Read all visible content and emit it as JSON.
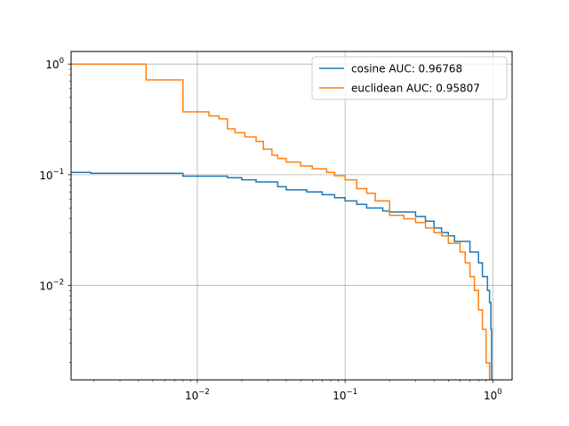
{
  "chart_data": {
    "type": "line",
    "title": "",
    "xlabel": "",
    "ylabel": "",
    "xscale": "log",
    "yscale": "log",
    "xlim": [
      0.0014,
      1.35
    ],
    "ylim": [
      0.0014,
      1.3
    ],
    "grid": true,
    "legend_placement": "top-right",
    "x_ticks": [
      {
        "value": 0.01,
        "base": "10",
        "exp": "−2"
      },
      {
        "value": 0.1,
        "base": "10",
        "exp": "−1"
      },
      {
        "value": 1,
        "base": "10",
        "exp": "0"
      }
    ],
    "y_ticks": [
      {
        "value": 0.01,
        "base": "10",
        "exp": "−2"
      },
      {
        "value": 0.1,
        "base": "10",
        "exp": "−1"
      },
      {
        "value": 1,
        "base": "10",
        "exp": "0"
      }
    ],
    "series": [
      {
        "name": "cosine AUC: 0.96768",
        "color": "#1f77b4",
        "steps": [
          [
            0.0014,
            0.105
          ],
          [
            0.0019,
            0.105
          ],
          [
            0.0019,
            0.103
          ],
          [
            0.008,
            0.103
          ],
          [
            0.008,
            0.097
          ],
          [
            0.016,
            0.097
          ],
          [
            0.016,
            0.094
          ],
          [
            0.02,
            0.094
          ],
          [
            0.02,
            0.09
          ],
          [
            0.025,
            0.09
          ],
          [
            0.025,
            0.086
          ],
          [
            0.035,
            0.086
          ],
          [
            0.035,
            0.078
          ],
          [
            0.04,
            0.078
          ],
          [
            0.04,
            0.073
          ],
          [
            0.055,
            0.073
          ],
          [
            0.055,
            0.07
          ],
          [
            0.07,
            0.07
          ],
          [
            0.07,
            0.066
          ],
          [
            0.085,
            0.066
          ],
          [
            0.085,
            0.062
          ],
          [
            0.1,
            0.062
          ],
          [
            0.1,
            0.058
          ],
          [
            0.12,
            0.058
          ],
          [
            0.12,
            0.054
          ],
          [
            0.14,
            0.054
          ],
          [
            0.14,
            0.05
          ],
          [
            0.18,
            0.05
          ],
          [
            0.18,
            0.047
          ],
          [
            0.2,
            0.047
          ],
          [
            0.2,
            0.046
          ],
          [
            0.3,
            0.046
          ],
          [
            0.3,
            0.042
          ],
          [
            0.35,
            0.042
          ],
          [
            0.35,
            0.038
          ],
          [
            0.4,
            0.038
          ],
          [
            0.4,
            0.033
          ],
          [
            0.45,
            0.033
          ],
          [
            0.45,
            0.03
          ],
          [
            0.5,
            0.03
          ],
          [
            0.5,
            0.028
          ],
          [
            0.55,
            0.028
          ],
          [
            0.55,
            0.025
          ],
          [
            0.7,
            0.025
          ],
          [
            0.7,
            0.02
          ],
          [
            0.8,
            0.02
          ],
          [
            0.8,
            0.016
          ],
          [
            0.85,
            0.016
          ],
          [
            0.85,
            0.012
          ],
          [
            0.92,
            0.012
          ],
          [
            0.92,
            0.009
          ],
          [
            0.95,
            0.009
          ],
          [
            0.95,
            0.007
          ],
          [
            0.97,
            0.007
          ],
          [
            0.97,
            0.004
          ],
          [
            0.98,
            0.004
          ],
          [
            0.98,
            0.0014
          ]
        ]
      },
      {
        "name": "euclidean AUC: 0.95807",
        "color": "#ff7f0e",
        "steps": [
          [
            0.0014,
            1.0
          ],
          [
            0.0045,
            1.0
          ],
          [
            0.0045,
            0.72
          ],
          [
            0.008,
            0.72
          ],
          [
            0.008,
            0.37
          ],
          [
            0.012,
            0.37
          ],
          [
            0.012,
            0.34
          ],
          [
            0.014,
            0.34
          ],
          [
            0.014,
            0.32
          ],
          [
            0.016,
            0.32
          ],
          [
            0.016,
            0.26
          ],
          [
            0.018,
            0.26
          ],
          [
            0.018,
            0.24
          ],
          [
            0.021,
            0.24
          ],
          [
            0.021,
            0.22
          ],
          [
            0.025,
            0.22
          ],
          [
            0.025,
            0.2
          ],
          [
            0.028,
            0.2
          ],
          [
            0.028,
            0.17
          ],
          [
            0.032,
            0.17
          ],
          [
            0.032,
            0.15
          ],
          [
            0.035,
            0.15
          ],
          [
            0.035,
            0.14
          ],
          [
            0.04,
            0.14
          ],
          [
            0.04,
            0.13
          ],
          [
            0.05,
            0.13
          ],
          [
            0.05,
            0.12
          ],
          [
            0.06,
            0.12
          ],
          [
            0.06,
            0.113
          ],
          [
            0.075,
            0.113
          ],
          [
            0.075,
            0.105
          ],
          [
            0.085,
            0.105
          ],
          [
            0.085,
            0.098
          ],
          [
            0.1,
            0.098
          ],
          [
            0.1,
            0.09
          ],
          [
            0.12,
            0.09
          ],
          [
            0.12,
            0.075
          ],
          [
            0.14,
            0.075
          ],
          [
            0.14,
            0.068
          ],
          [
            0.16,
            0.068
          ],
          [
            0.16,
            0.058
          ],
          [
            0.2,
            0.058
          ],
          [
            0.2,
            0.043
          ],
          [
            0.25,
            0.043
          ],
          [
            0.25,
            0.04
          ],
          [
            0.3,
            0.04
          ],
          [
            0.3,
            0.037
          ],
          [
            0.35,
            0.037
          ],
          [
            0.35,
            0.033
          ],
          [
            0.4,
            0.033
          ],
          [
            0.4,
            0.03
          ],
          [
            0.45,
            0.03
          ],
          [
            0.45,
            0.028
          ],
          [
            0.5,
            0.028
          ],
          [
            0.5,
            0.024
          ],
          [
            0.6,
            0.024
          ],
          [
            0.6,
            0.02
          ],
          [
            0.65,
            0.02
          ],
          [
            0.65,
            0.016
          ],
          [
            0.7,
            0.016
          ],
          [
            0.7,
            0.012
          ],
          [
            0.75,
            0.012
          ],
          [
            0.75,
            0.009
          ],
          [
            0.8,
            0.009
          ],
          [
            0.8,
            0.006
          ],
          [
            0.85,
            0.006
          ],
          [
            0.85,
            0.004
          ],
          [
            0.9,
            0.004
          ],
          [
            0.9,
            0.002
          ],
          [
            0.95,
            0.002
          ],
          [
            0.95,
            0.0014
          ]
        ]
      }
    ]
  }
}
